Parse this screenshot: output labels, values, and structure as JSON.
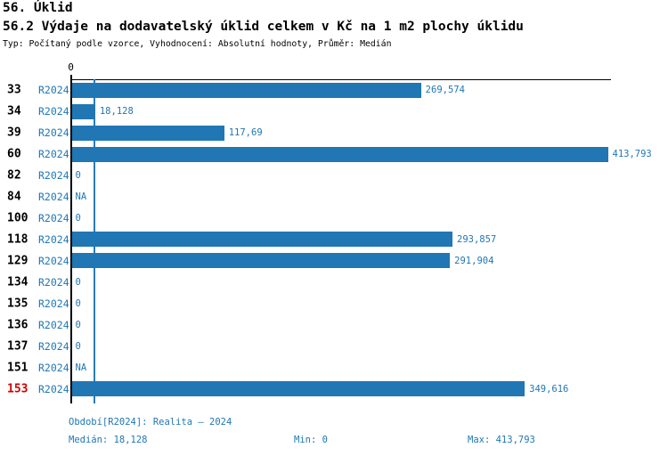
{
  "header": {
    "title": "56. Úklid",
    "subtitle": "56.2 Výdaje na dodavatelský úklid celkem v Kč na 1 m2 plochy úklidu",
    "meta": "Typ: Počítaný podle vzorce, Vyhodnocení: Absolutní hodnoty, Průměr: Medián"
  },
  "chart_data": {
    "type": "bar",
    "orientation": "horizontal",
    "title": "56.2 Výdaje na dodavatelský úklid celkem v Kč na 1 m2 plochy úklidu",
    "axis_zero_label": "0",
    "xlim": [
      0,
      413.793
    ],
    "xmax": 413.793,
    "series_name": "R2024",
    "median_line_value": 18.128,
    "rows": [
      {
        "id": "33",
        "period": "R2024",
        "value": 269.574,
        "label": "269,574",
        "highlight": false
      },
      {
        "id": "34",
        "period": "R2024",
        "value": 18.128,
        "label": "18,128",
        "highlight": false
      },
      {
        "id": "39",
        "period": "R2024",
        "value": 117.69,
        "label": "117,69",
        "highlight": false
      },
      {
        "id": "60",
        "period": "R2024",
        "value": 413.793,
        "label": "413,793",
        "highlight": false
      },
      {
        "id": "82",
        "period": "R2024",
        "value": 0,
        "label": "0",
        "highlight": false
      },
      {
        "id": "84",
        "period": "R2024",
        "value": null,
        "label": "NA",
        "highlight": false
      },
      {
        "id": "100",
        "period": "R2024",
        "value": 0,
        "label": "0",
        "highlight": false
      },
      {
        "id": "118",
        "period": "R2024",
        "value": 293.857,
        "label": "293,857",
        "highlight": false
      },
      {
        "id": "129",
        "period": "R2024",
        "value": 291.904,
        "label": "291,904",
        "highlight": false
      },
      {
        "id": "134",
        "period": "R2024",
        "value": 0,
        "label": "0",
        "highlight": false
      },
      {
        "id": "135",
        "period": "R2024",
        "value": 0,
        "label": "0",
        "highlight": false
      },
      {
        "id": "136",
        "period": "R2024",
        "value": 0,
        "label": "0",
        "highlight": false
      },
      {
        "id": "137",
        "period": "R2024",
        "value": 0,
        "label": "0",
        "highlight": false
      },
      {
        "id": "151",
        "period": "R2024",
        "value": null,
        "label": "NA",
        "highlight": false
      },
      {
        "id": "153",
        "period": "R2024",
        "value": 349.616,
        "label": "349,616",
        "highlight": true
      }
    ],
    "colors": {
      "bar": "#2077b4",
      "median_line": "#2b7bb9",
      "label_text": "#2077b4",
      "highlight_row": "#cc0000",
      "axis": "#000000"
    }
  },
  "footer": {
    "period": "Období[R2024]: Realita – 2024",
    "median": "Medián: 18,128",
    "min": "Min: 0",
    "max": "Max: 413,793"
  }
}
